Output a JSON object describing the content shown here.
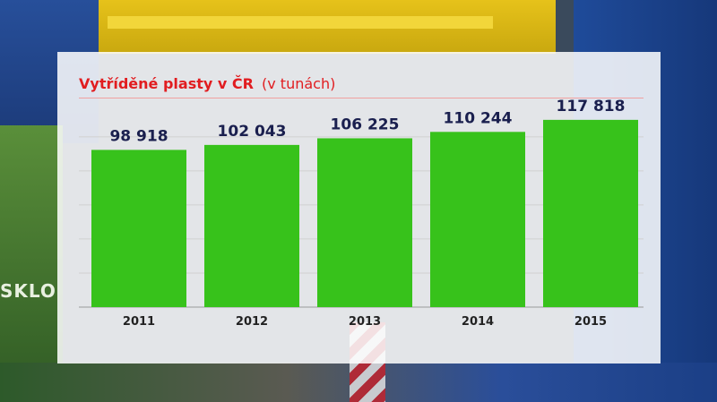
{
  "background": {
    "label": "SKLO"
  },
  "chart_data": {
    "type": "bar",
    "title": "Vytříděné plasty v ČR",
    "subtitle": "(v tunách)",
    "categories": [
      "2011",
      "2012",
      "2013",
      "2014",
      "2015"
    ],
    "values": [
      98918,
      102043,
      106225,
      110244,
      117818
    ],
    "value_labels": [
      "98 918",
      "102 043",
      "106 225",
      "110 244",
      "117 818"
    ],
    "ylim": [
      0,
      120000
    ],
    "grid": true,
    "bar_color": "#37c21b",
    "title_color": "#e11d20",
    "label_color": "#1a1f4e"
  }
}
